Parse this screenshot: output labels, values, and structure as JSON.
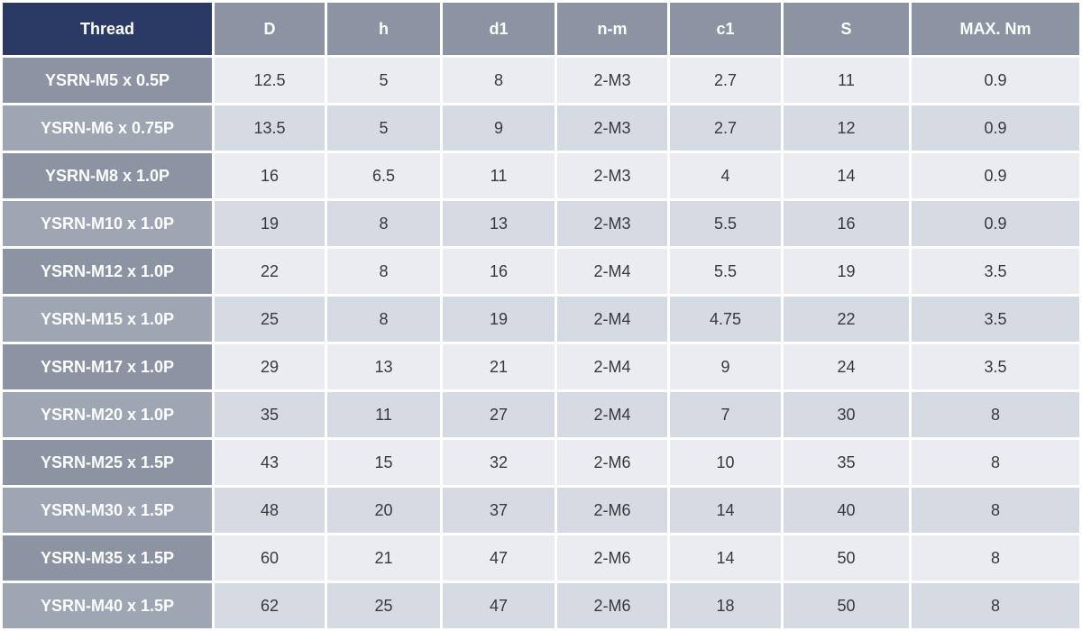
{
  "table": {
    "columns": [
      "Thread",
      "D",
      "h",
      "d1",
      "n-m",
      "c1",
      "S",
      "MAX. Nm"
    ],
    "rows": [
      {
        "thread": "YSRN-M5 x 0.5P",
        "values": [
          "12.5",
          "5",
          "8",
          "2-M3",
          "2.7",
          "11",
          "0.9"
        ]
      },
      {
        "thread": "YSRN-M6 x 0.75P",
        "values": [
          "13.5",
          "5",
          "9",
          "2-M3",
          "2.7",
          "12",
          "0.9"
        ]
      },
      {
        "thread": "YSRN-M8 x 1.0P",
        "values": [
          "16",
          "6.5",
          "11",
          "2-M3",
          "4",
          "14",
          "0.9"
        ]
      },
      {
        "thread": "YSRN-M10 x 1.0P",
        "values": [
          "19",
          "8",
          "13",
          "2-M3",
          "5.5",
          "16",
          "0.9"
        ]
      },
      {
        "thread": "YSRN-M12 x 1.0P",
        "values": [
          "22",
          "8",
          "16",
          "2-M4",
          "5.5",
          "19",
          "3.5"
        ]
      },
      {
        "thread": "YSRN-M15 x 1.0P",
        "values": [
          "25",
          "8",
          "19",
          "2-M4",
          "4.75",
          "22",
          "3.5"
        ]
      },
      {
        "thread": "YSRN-M17 x 1.0P",
        "values": [
          "29",
          "13",
          "21",
          "2-M4",
          "9",
          "24",
          "3.5"
        ]
      },
      {
        "thread": "YSRN-M20 x 1.0P",
        "values": [
          "35",
          "11",
          "27",
          "2-M4",
          "7",
          "30",
          "8"
        ]
      },
      {
        "thread": "YSRN-M25 x 1.5P",
        "values": [
          "43",
          "15",
          "32",
          "2-M6",
          "10",
          "35",
          "8"
        ]
      },
      {
        "thread": "YSRN-M30 x 1.5P",
        "values": [
          "48",
          "20",
          "37",
          "2-M6",
          "14",
          "40",
          "8"
        ]
      },
      {
        "thread": "YSRN-M35 x 1.5P",
        "values": [
          "60",
          "21",
          "47",
          "2-M6",
          "14",
          "50",
          "8"
        ]
      },
      {
        "thread": "YSRN-M40 x 1.5P",
        "values": [
          "62",
          "25",
          "47",
          "2-M6",
          "18",
          "50",
          "8"
        ]
      }
    ]
  },
  "colors": {
    "header_thread_bg": "#2B3A64",
    "header_gray_bg": "#8C94A3",
    "row_head_dark_bg": "#8C94A3",
    "row_head_light_bg": "#9EA6B4",
    "cell_light_bg": "#EAECF1",
    "cell_dark_bg": "#D6DAE2",
    "separator": "#FFFFFF",
    "text_dark": "#39393B",
    "text_light": "#FFFFFF"
  }
}
